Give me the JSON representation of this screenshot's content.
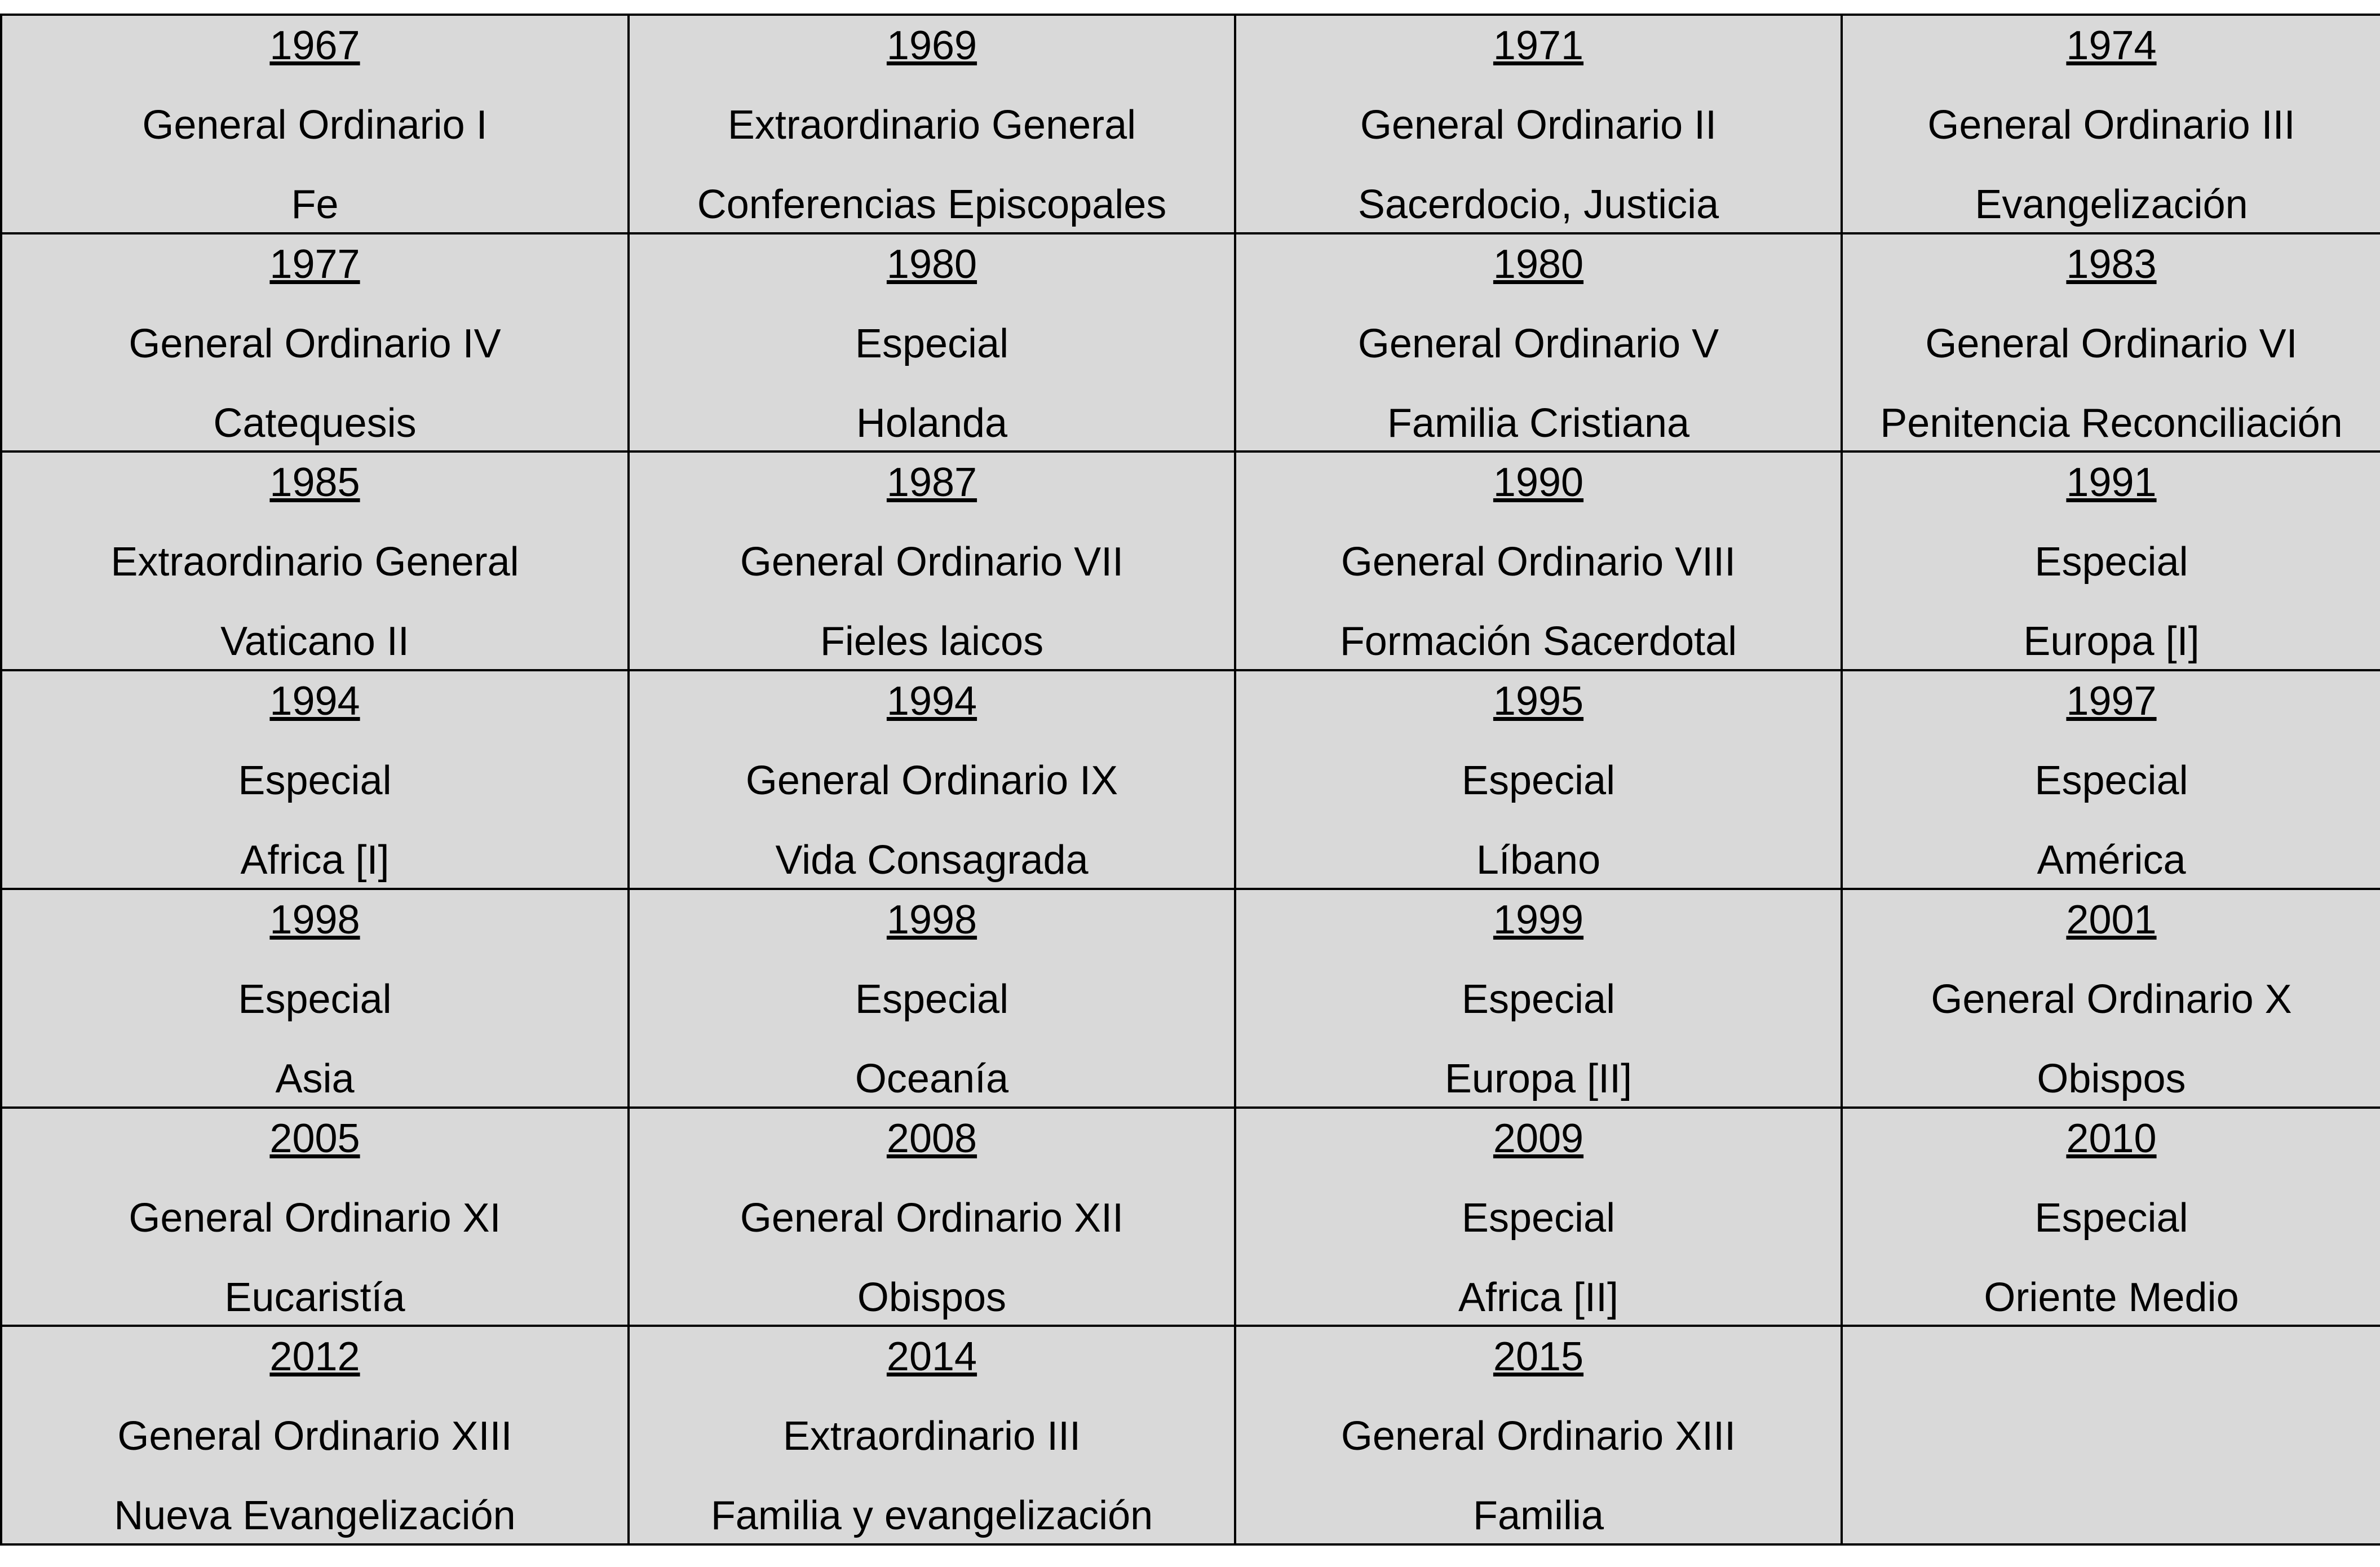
{
  "rows": [
    [
      {
        "year": "1967",
        "type": "General Ordinario I",
        "topic": "Fe"
      },
      {
        "year": "1969",
        "type": "Extraordinario General",
        "topic": "Conferencias Episcopales"
      },
      {
        "year": "1971",
        "type": "General Ordinario II",
        "topic": "Sacerdocio, Justicia"
      },
      {
        "year": "1974",
        "type": "General Ordinario III",
        "topic": "Evangelización"
      }
    ],
    [
      {
        "year": "1977",
        "type": "General Ordinario IV",
        "topic": "Catequesis"
      },
      {
        "year": "1980",
        "type": "Especial",
        "topic": "Holanda"
      },
      {
        "year": "1980",
        "type": "General Ordinario V",
        "topic": "Familia Cristiana"
      },
      {
        "year": "1983",
        "type": "General Ordinario VI",
        "topic": "Penitencia Reconciliación"
      }
    ],
    [
      {
        "year": "1985",
        "type": "Extraordinario General",
        "topic": "Vaticano II"
      },
      {
        "year": "1987",
        "type": "General Ordinario VII",
        "topic": "Fieles laicos"
      },
      {
        "year": "1990",
        "type": "General Ordinario VIII",
        "topic": "Formación Sacerdotal"
      },
      {
        "year": "1991",
        "type": "Especial",
        "topic": "Europa [I]"
      }
    ],
    [
      {
        "year": "1994",
        "type": "Especial",
        "topic": "Africa [I]"
      },
      {
        "year": "1994",
        "type": "General Ordinario IX",
        "topic": "Vida Consagrada"
      },
      {
        "year": "1995",
        "type": "Especial",
        "topic": "Líbano"
      },
      {
        "year": "1997",
        "type": "Especial",
        "topic": "América"
      }
    ],
    [
      {
        "year": "1998",
        "type": "Especial",
        "topic": "Asia"
      },
      {
        "year": "1998",
        "type": "Especial",
        "topic": "Oceanía"
      },
      {
        "year": "1999",
        "type": "Especial",
        "topic": "Europa [II]"
      },
      {
        "year": "2001",
        "type": "General Ordinario X",
        "topic": "Obispos"
      }
    ],
    [
      {
        "year": "2005",
        "type": "General Ordinario XI",
        "topic": "Eucaristía"
      },
      {
        "year": "2008",
        "type": "General Ordinario XII",
        "topic": "Obispos"
      },
      {
        "year": "2009",
        "type": "Especial",
        "topic": "Africa [II]"
      },
      {
        "year": "2010",
        "type": "Especial",
        "topic": "Oriente Medio"
      }
    ],
    [
      {
        "year": "2012",
        "type": "General Ordinario XIII",
        "topic": "Nueva Evangelización"
      },
      {
        "year": "2014",
        "type": "Extraordinario III",
        "topic": "Familia y evangelización"
      },
      {
        "year": "2015",
        "type": "General Ordinario XIII",
        "topic": "Familia"
      },
      {
        "year": "",
        "type": "",
        "topic": ""
      }
    ]
  ]
}
